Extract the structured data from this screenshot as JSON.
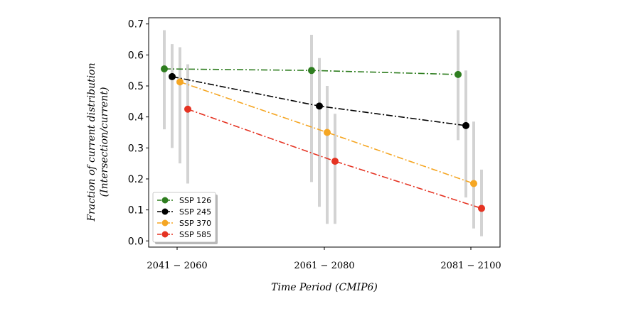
{
  "chart_data": {
    "type": "line",
    "xlabel": "Time Period (CMIP6)",
    "ylabel_line1": "Fraction of current distribution",
    "ylabel_line2": "(Intersection/current)",
    "categories": [
      "2041 − 2060",
      "2061 − 2080",
      "2081 − 2100"
    ],
    "ylim": [
      -0.02,
      0.72
    ],
    "yticks": [
      0.0,
      0.1,
      0.2,
      0.3,
      0.4,
      0.5,
      0.6,
      0.7
    ],
    "ytick_labels": [
      "0.0",
      "0.1",
      "0.2",
      "0.3",
      "0.4",
      "0.5",
      "0.6",
      "0.7"
    ],
    "grid": false,
    "legend_position": "bottom-left",
    "series": [
      {
        "name": "SSP 126",
        "color": "#2e7d1f",
        "values": [
          0.555,
          0.55,
          0.537
        ],
        "err_low": [
          0.36,
          0.19,
          0.325
        ],
        "err_high": [
          0.68,
          0.665,
          0.68
        ]
      },
      {
        "name": "SSP 245",
        "color": "#000000",
        "values": [
          0.53,
          0.435,
          0.372
        ],
        "err_low": [
          0.3,
          0.11,
          0.14
        ],
        "err_high": [
          0.635,
          0.59,
          0.55
        ]
      },
      {
        "name": "SSP 370",
        "color": "#f5a623",
        "values": [
          0.513,
          0.35,
          0.185
        ],
        "err_low": [
          0.25,
          0.055,
          0.04
        ],
        "err_high": [
          0.625,
          0.5,
          0.385
        ]
      },
      {
        "name": "SSP 585",
        "color": "#e53322",
        "values": [
          0.425,
          0.257,
          0.105
        ],
        "err_low": [
          0.185,
          0.055,
          0.015
        ],
        "err_high": [
          0.57,
          0.41,
          0.23
        ]
      }
    ]
  }
}
